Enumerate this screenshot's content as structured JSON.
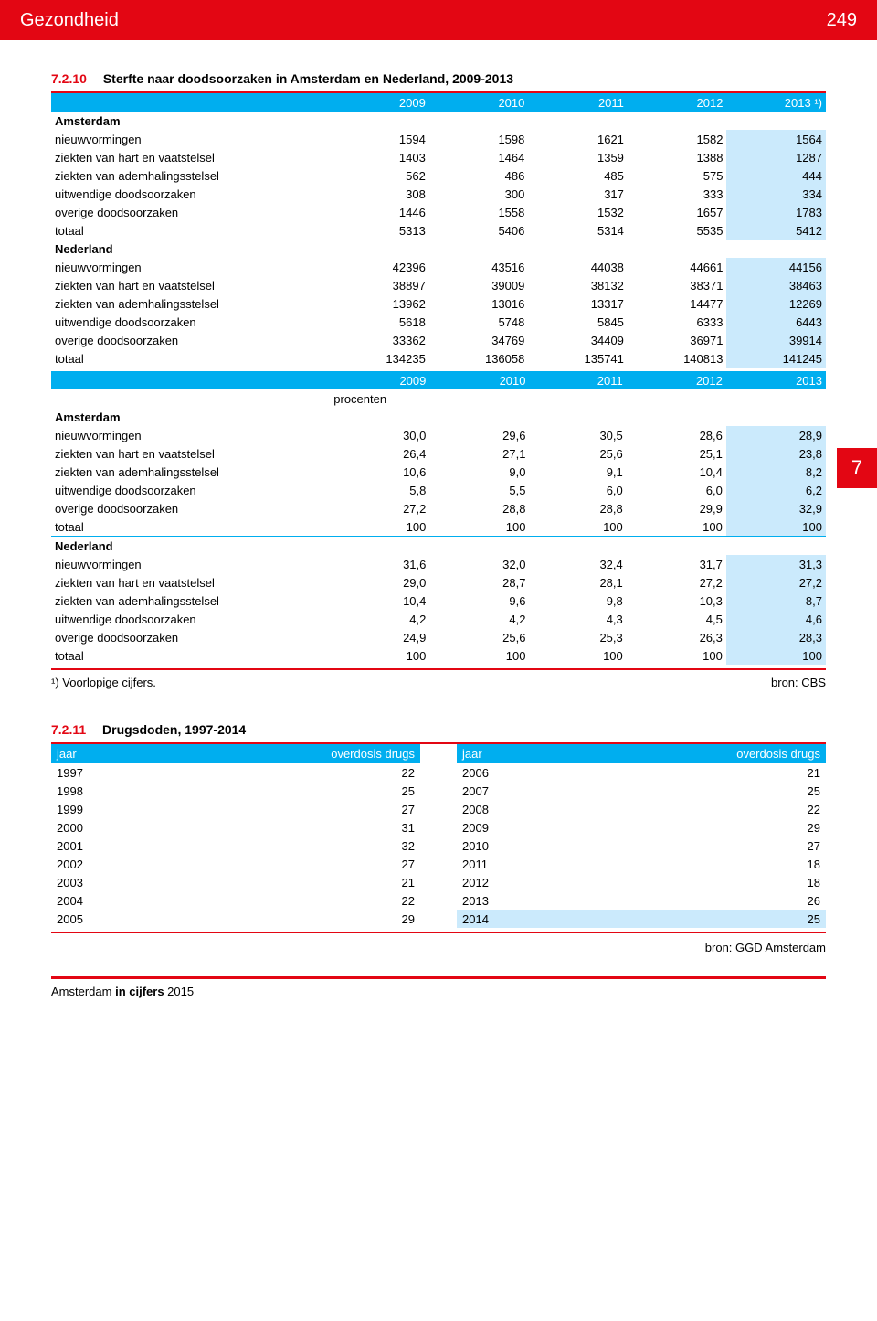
{
  "header": {
    "title": "Gezondheid",
    "page": "249"
  },
  "side_tab": "7",
  "section1": {
    "number": "7.2.10",
    "title": "Sterfte naar doodsoorzaken in Amsterdam en Nederland, 2009-2013",
    "years": [
      "2009",
      "2010",
      "2011",
      "2012",
      "2013 ¹)"
    ],
    "procenten_label": "procenten",
    "years2": [
      "2009",
      "2010",
      "2011",
      "2012",
      "2013"
    ],
    "rows_abs": {
      "Amsterdam": [
        {
          "label": "nieuwvormingen",
          "v": [
            "1594",
            "1598",
            "1621",
            "1582",
            "1564"
          ]
        },
        {
          "label": "ziekten van hart en vaatstelsel",
          "v": [
            "1403",
            "1464",
            "1359",
            "1388",
            "1287"
          ]
        },
        {
          "label": "ziekten van ademhalingsstelsel",
          "v": [
            "562",
            "486",
            "485",
            "575",
            "444"
          ]
        },
        {
          "label": "uitwendige doodsoorzaken",
          "v": [
            "308",
            "300",
            "317",
            "333",
            "334"
          ]
        },
        {
          "label": "overige doodsoorzaken",
          "v": [
            "1446",
            "1558",
            "1532",
            "1657",
            "1783"
          ]
        },
        {
          "label": "totaal",
          "v": [
            "5313",
            "5406",
            "5314",
            "5535",
            "5412"
          ]
        }
      ],
      "Nederland": [
        {
          "label": "nieuwvormingen",
          "v": [
            "42396",
            "43516",
            "44038",
            "44661",
            "44156"
          ]
        },
        {
          "label": "ziekten van hart en vaatstelsel",
          "v": [
            "38897",
            "39009",
            "38132",
            "38371",
            "38463"
          ]
        },
        {
          "label": "ziekten van ademhalingsstelsel",
          "v": [
            "13962",
            "13016",
            "13317",
            "14477",
            "12269"
          ]
        },
        {
          "label": "uitwendige doodsoorzaken",
          "v": [
            "5618",
            "5748",
            "5845",
            "6333",
            "6443"
          ]
        },
        {
          "label": "overige doodsoorzaken",
          "v": [
            "33362",
            "34769",
            "34409",
            "36971",
            "39914"
          ]
        },
        {
          "label": "totaal",
          "v": [
            "134235",
            "136058",
            "135741",
            "140813",
            "141245"
          ]
        }
      ]
    },
    "rows_pct": {
      "Amsterdam": [
        {
          "label": "nieuwvormingen",
          "v": [
            "30,0",
            "29,6",
            "30,5",
            "28,6",
            "28,9"
          ]
        },
        {
          "label": "ziekten van hart en vaatstelsel",
          "v": [
            "26,4",
            "27,1",
            "25,6",
            "25,1",
            "23,8"
          ]
        },
        {
          "label": "ziekten van ademhalingsstelsel",
          "v": [
            "10,6",
            "9,0",
            "9,1",
            "10,4",
            "8,2"
          ]
        },
        {
          "label": "uitwendige doodsoorzaken",
          "v": [
            "5,8",
            "5,5",
            "6,0",
            "6,0",
            "6,2"
          ]
        },
        {
          "label": "overige doodsoorzaken",
          "v": [
            "27,2",
            "28,8",
            "28,8",
            "29,9",
            "32,9"
          ]
        },
        {
          "label": "totaal",
          "v": [
            "100",
            "100",
            "100",
            "100",
            "100"
          ]
        }
      ],
      "Nederland": [
        {
          "label": "nieuwvormingen",
          "v": [
            "31,6",
            "32,0",
            "32,4",
            "31,7",
            "31,3"
          ]
        },
        {
          "label": "ziekten van hart en vaatstelsel",
          "v": [
            "29,0",
            "28,7",
            "28,1",
            "27,2",
            "27,2"
          ]
        },
        {
          "label": "ziekten van ademhalingsstelsel",
          "v": [
            "10,4",
            "9,6",
            "9,8",
            "10,3",
            "8,7"
          ]
        },
        {
          "label": "uitwendige doodsoorzaken",
          "v": [
            "4,2",
            "4,2",
            "4,3",
            "4,5",
            "4,6"
          ]
        },
        {
          "label": "overige doodsoorzaken",
          "v": [
            "24,9",
            "25,6",
            "25,3",
            "26,3",
            "28,3"
          ]
        },
        {
          "label": "totaal",
          "v": [
            "100",
            "100",
            "100",
            "100",
            "100"
          ]
        }
      ]
    },
    "footnote_left": "¹)  Voorlopige cijfers.",
    "footnote_right": "bron: CBS"
  },
  "section2": {
    "number": "7.2.11",
    "title": "Drugsdoden, 1997-2014",
    "col_jaar": "jaar",
    "col_val": "overdosis drugs",
    "left": [
      {
        "y": "1997",
        "v": "22"
      },
      {
        "y": "1998",
        "v": "25"
      },
      {
        "y": "1999",
        "v": "27"
      },
      {
        "y": "2000",
        "v": "31"
      },
      {
        "y": "2001",
        "v": "32"
      },
      {
        "y": "2002",
        "v": "27"
      },
      {
        "y": "2003",
        "v": "21"
      },
      {
        "y": "2004",
        "v": "22"
      },
      {
        "y": "2005",
        "v": "29"
      }
    ],
    "right": [
      {
        "y": "2006",
        "v": "21"
      },
      {
        "y": "2007",
        "v": "25"
      },
      {
        "y": "2008",
        "v": "22"
      },
      {
        "y": "2009",
        "v": "29"
      },
      {
        "y": "2010",
        "v": "27"
      },
      {
        "y": "2011",
        "v": "18"
      },
      {
        "y": "2012",
        "v": "18"
      },
      {
        "y": "2013",
        "v": "26"
      },
      {
        "y": "2014",
        "v": "25",
        "hl": true
      }
    ],
    "bron": "bron: GGD Amsterdam"
  },
  "footer": {
    "a": "Amsterdam ",
    "b": "in cijfers ",
    "c": "2015"
  },
  "colors": {
    "red": "#e30613",
    "blue": "#00aeef",
    "lightblue": "#cbeafc"
  }
}
